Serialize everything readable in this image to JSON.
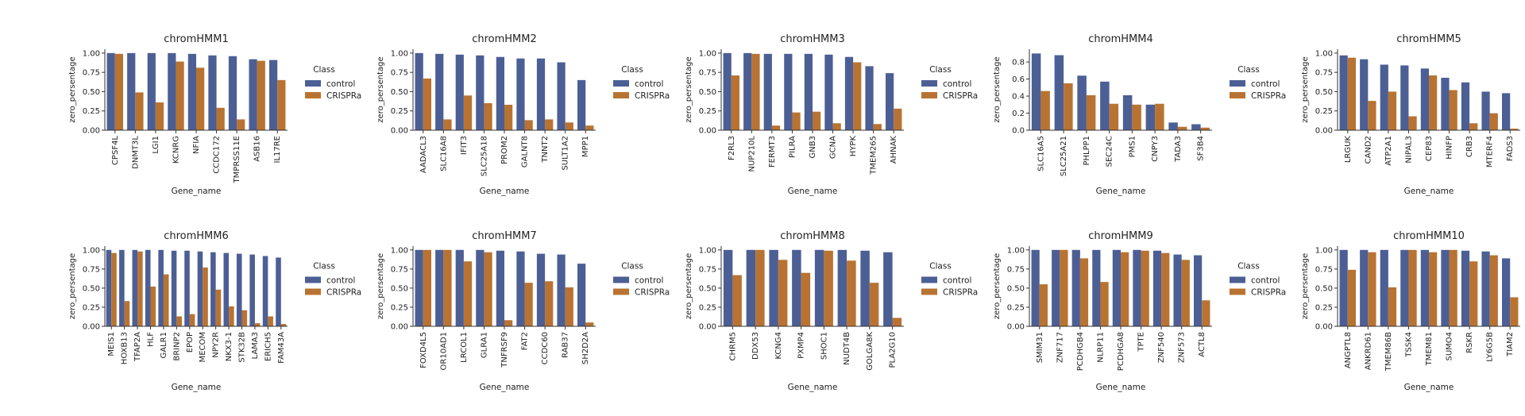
{
  "figure": {
    "legend_title": "Class",
    "legend_entries": [
      "control",
      "CRISPRa"
    ]
  },
  "colors": {
    "control": "#4c5f95",
    "CRISPRa": "#b87332"
  },
  "chart_data": [
    {
      "type": "bar",
      "title": "chromHMM1",
      "xlabel": "Gene_name",
      "ylabel": "zero_persentage",
      "ylim": [
        0,
        1.05
      ],
      "yticks": [
        0.0,
        0.25,
        0.5,
        0.75,
        1.0
      ],
      "categories": [
        "CPSF4L",
        "DNMT3L",
        "LGI1",
        "KCNRG",
        "NFIA",
        "CCDC172",
        "TMPRSS11E",
        "ASB16",
        "IL17RE"
      ],
      "series": [
        {
          "name": "control",
          "values": [
            1.0,
            1.0,
            1.0,
            1.0,
            0.99,
            0.97,
            0.96,
            0.92,
            0.91
          ]
        },
        {
          "name": "CRISPRa",
          "values": [
            0.99,
            0.49,
            0.36,
            0.89,
            0.81,
            0.29,
            0.14,
            0.9,
            0.65
          ]
        }
      ],
      "legend": "right",
      "grid": false
    },
    {
      "type": "bar",
      "title": "chromHMM2",
      "xlabel": "Gene_name",
      "ylabel": "zero_persentage",
      "ylim": [
        0,
        1.05
      ],
      "yticks": [
        0.0,
        0.25,
        0.5,
        0.75,
        1.0
      ],
      "categories": [
        "AADACL3",
        "SLC16A8",
        "IFIT3",
        "SLC25A18",
        "PROM2",
        "GALNT8",
        "TNNT2",
        "SULT1A2",
        "MPP1"
      ],
      "series": [
        {
          "name": "control",
          "values": [
            1.0,
            0.99,
            0.98,
            0.97,
            0.95,
            0.93,
            0.93,
            0.88,
            0.65
          ]
        },
        {
          "name": "CRISPRa",
          "values": [
            0.67,
            0.14,
            0.45,
            0.35,
            0.33,
            0.13,
            0.14,
            0.1,
            0.06
          ]
        }
      ],
      "legend": "right",
      "grid": false
    },
    {
      "type": "bar",
      "title": "chromHMM3",
      "xlabel": "Gene_name",
      "ylabel": "zero_persentage",
      "ylim": [
        0,
        1.05
      ],
      "yticks": [
        0.0,
        0.25,
        0.5,
        0.75,
        1.0
      ],
      "categories": [
        "F2RL3",
        "NUP210L",
        "FERMT3",
        "PILRA",
        "GNB3",
        "GCNA",
        "HYPK",
        "TMEM265",
        "AHNAK"
      ],
      "series": [
        {
          "name": "control",
          "values": [
            1.0,
            1.0,
            0.99,
            0.99,
            0.99,
            0.98,
            0.95,
            0.83,
            0.74
          ]
        },
        {
          "name": "CRISPRa",
          "values": [
            0.71,
            0.99,
            0.06,
            0.23,
            0.24,
            0.09,
            0.88,
            0.08,
            0.28
          ]
        }
      ],
      "legend": "right",
      "grid": false
    },
    {
      "type": "bar",
      "title": "chromHMM4",
      "xlabel": "Gene_name",
      "ylabel": "zero_persentage",
      "ylim": [
        0,
        0.95
      ],
      "yticks": [
        0.0,
        0.2,
        0.4,
        0.6,
        0.8
      ],
      "categories": [
        "SLC16A5",
        "SLC25A21",
        "PHLPP1",
        "SEC24C",
        "PMS1",
        "CNPY3",
        "TADA3",
        "SF3B4"
      ],
      "series": [
        {
          "name": "control",
          "values": [
            0.9,
            0.88,
            0.64,
            0.57,
            0.41,
            0.3,
            0.09,
            0.07
          ]
        },
        {
          "name": "CRISPRa",
          "values": [
            0.46,
            0.55,
            0.41,
            0.31,
            0.3,
            0.31,
            0.04,
            0.03
          ]
        }
      ],
      "legend": "right",
      "grid": false
    },
    {
      "type": "bar",
      "title": "chromHMM5",
      "xlabel": "Gene_name",
      "ylabel": "zero_persentage",
      "ylim": [
        0,
        1.05
      ],
      "yticks": [
        0.0,
        0.25,
        0.5,
        0.75,
        1.0
      ],
      "categories": [
        "LRGUK",
        "CAND2",
        "ATP2A1",
        "NIPAL3",
        "CEP83",
        "HINFP",
        "CRB3",
        "MTERF4",
        "FADS3"
      ],
      "series": [
        {
          "name": "control",
          "values": [
            0.97,
            0.92,
            0.85,
            0.84,
            0.8,
            0.68,
            0.62,
            0.5,
            0.48
          ]
        },
        {
          "name": "CRISPRa",
          "values": [
            0.94,
            0.38,
            0.5,
            0.18,
            0.71,
            0.52,
            0.09,
            0.22,
            0.02
          ]
        }
      ],
      "legend": "right",
      "grid": false
    },
    {
      "type": "bar",
      "title": "chromHMM6",
      "xlabel": "Gene_name",
      "ylabel": "zero_persentage",
      "ylim": [
        0,
        1.05
      ],
      "yticks": [
        0.0,
        0.25,
        0.5,
        0.75,
        1.0
      ],
      "categories": [
        "MEIS1",
        "HOXB13",
        "TFAP2A",
        "HLF",
        "GALR1",
        "BRINP2",
        "EPOP",
        "MECOM",
        "NPY2R",
        "NKX3-1",
        "STK32B",
        "LAMA3",
        "ERICH5",
        "FAM43A"
      ],
      "series": [
        {
          "name": "control",
          "values": [
            1.0,
            1.0,
            1.0,
            1.0,
            1.0,
            0.99,
            0.99,
            0.98,
            0.97,
            0.96,
            0.95,
            0.94,
            0.92,
            0.9
          ]
        },
        {
          "name": "CRISPRa",
          "values": [
            0.96,
            0.33,
            0.98,
            0.52,
            0.68,
            0.13,
            0.16,
            0.77,
            0.48,
            0.26,
            0.21,
            0.04,
            0.13,
            0.03
          ]
        }
      ],
      "legend": "right",
      "grid": false
    },
    {
      "type": "bar",
      "title": "chromHMM7",
      "xlabel": "Gene_name",
      "ylabel": "zero_persentage",
      "ylim": [
        0,
        1.05
      ],
      "yticks": [
        0.0,
        0.25,
        0.5,
        0.75,
        1.0
      ],
      "categories": [
        "FOXD4L5",
        "OR10AD1",
        "LRCOL1",
        "GLRA1",
        "TNFRSF9",
        "FAT2",
        "CCDC60",
        "RAB37",
        "SH2D2A"
      ],
      "series": [
        {
          "name": "control",
          "values": [
            1.0,
            1.0,
            1.0,
            1.0,
            0.99,
            0.98,
            0.95,
            0.94,
            0.82
          ]
        },
        {
          "name": "CRISPRa",
          "values": [
            1.0,
            1.0,
            0.85,
            0.97,
            0.08,
            0.57,
            0.59,
            0.51,
            0.05
          ]
        }
      ],
      "legend": "right",
      "grid": false
    },
    {
      "type": "bar",
      "title": "chromHMM8",
      "xlabel": "Gene_name",
      "ylabel": "zero_persentage",
      "ylim": [
        0,
        1.05
      ],
      "yticks": [
        0.0,
        0.25,
        0.5,
        0.75,
        1.0
      ],
      "categories": [
        "CHRM5",
        "DDX53",
        "KCNG4",
        "PXMP4",
        "SHOC1",
        "NUDT4B",
        "GOLGA8K",
        "PLA2G10"
      ],
      "series": [
        {
          "name": "control",
          "values": [
            1.0,
            1.0,
            1.0,
            1.0,
            1.0,
            1.0,
            0.99,
            0.97
          ]
        },
        {
          "name": "CRISPRa",
          "values": [
            0.67,
            1.0,
            0.87,
            0.7,
            0.99,
            0.86,
            0.57,
            0.11
          ]
        }
      ],
      "legend": "right",
      "grid": false
    },
    {
      "type": "bar",
      "title": "chromHMM9",
      "xlabel": "Gene_name",
      "ylabel": "zero_persentage",
      "ylim": [
        0,
        1.05
      ],
      "yticks": [
        0.0,
        0.25,
        0.5,
        0.75,
        1.0
      ],
      "categories": [
        "SMIM31",
        "ZNF717",
        "PCDHGB4",
        "NLRP11",
        "PCDHGA8",
        "TPTE",
        "ZNF540",
        "ZNF573",
        "ACTL8"
      ],
      "series": [
        {
          "name": "control",
          "values": [
            1.0,
            1.0,
            1.0,
            1.0,
            1.0,
            1.0,
            0.99,
            0.94,
            0.93
          ]
        },
        {
          "name": "CRISPRa",
          "values": [
            0.55,
            1.0,
            0.89,
            0.58,
            0.97,
            0.99,
            0.96,
            0.87,
            0.34
          ]
        }
      ],
      "legend": "right",
      "grid": false
    },
    {
      "type": "bar",
      "title": "chromHMM10",
      "xlabel": "Gene_name",
      "ylabel": "zero_persentage",
      "ylim": [
        0,
        1.05
      ],
      "yticks": [
        0.0,
        0.25,
        0.5,
        0.75,
        1.0
      ],
      "categories": [
        "ANGPTL8",
        "ANKRD61",
        "TMEM86B",
        "TSSK4",
        "TMEM81",
        "SUMO4",
        "RSKR",
        "LY6G5B",
        "TIAM2"
      ],
      "series": [
        {
          "name": "control",
          "values": [
            1.0,
            1.0,
            1.0,
            1.0,
            1.0,
            1.0,
            0.99,
            0.98,
            0.89
          ]
        },
        {
          "name": "CRISPRa",
          "values": [
            0.74,
            0.97,
            0.51,
            1.0,
            0.97,
            1.0,
            0.85,
            0.93,
            0.38
          ]
        }
      ],
      "legend": "right",
      "grid": false
    }
  ]
}
